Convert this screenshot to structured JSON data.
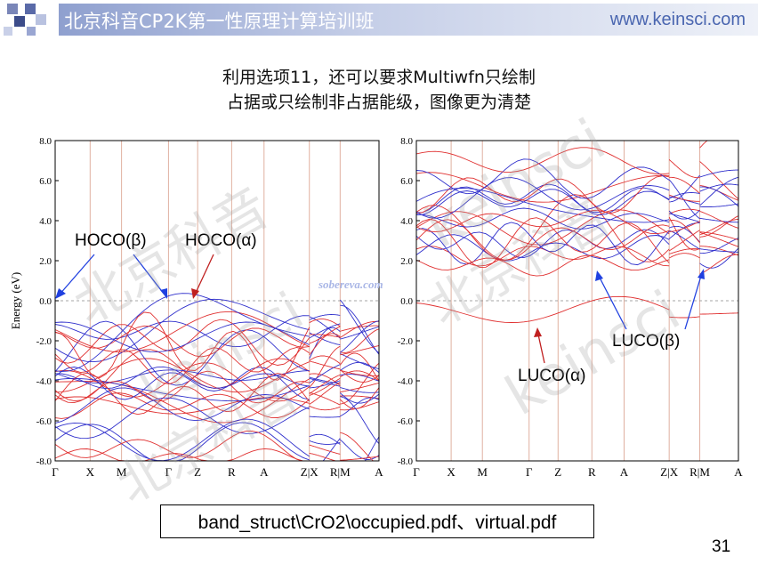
{
  "header": {
    "title": "北京科音CP2K第一性原理计算培训班",
    "url": "www.keinsci.com"
  },
  "subtitle": {
    "line1": "利用选项11，还可以要求Multiwfn只绘制",
    "line2": "占据或只绘制非占据能级，图像更为清楚"
  },
  "plots": {
    "ylabel": "Energy (eV)",
    "yticks": [
      "8.0",
      "6.0",
      "4.0",
      "2.0",
      "0.0",
      "-2.0",
      "-4.0",
      "-6.0",
      "-8.0"
    ],
    "kpoints": [
      "Γ",
      "X",
      "M",
      "Γ",
      "Z",
      "R",
      "A",
      "Z|X",
      "R|M",
      "A"
    ],
    "left": {
      "annotations": [
        "HOCO(β)",
        "HOCO(α)"
      ],
      "watermark": "sobereva.com"
    },
    "right": {
      "annotations": [
        "LUCO(β)",
        "LUCO(α)"
      ]
    },
    "colors": {
      "alpha": "#e03030",
      "beta": "#3030cc",
      "kline": "#e0b0a0"
    }
  },
  "watermarks": [
    "keinsci",
    "北京科音"
  ],
  "footer": {
    "path": "band_struct\\CrO2\\occupied.pdf、virtual.pdf",
    "page": "31"
  }
}
